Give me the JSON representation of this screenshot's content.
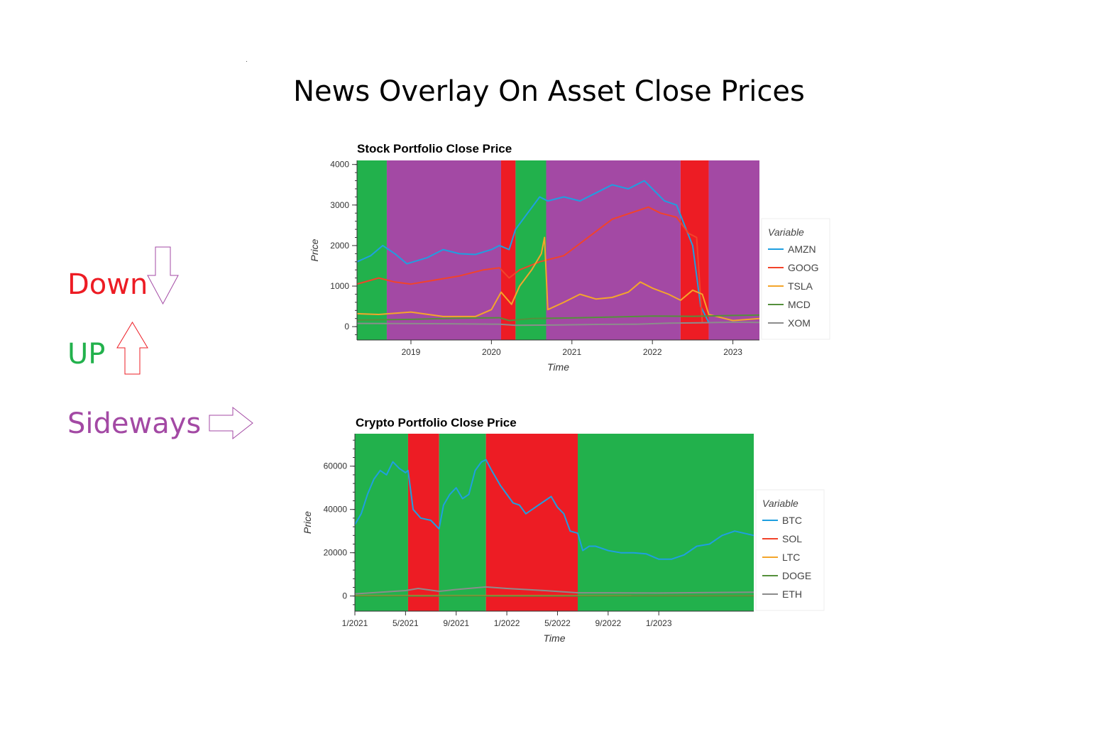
{
  "page": {
    "title": "News Overlay On Asset Close Prices"
  },
  "key": [
    {
      "label": "Down",
      "color": "#ED1C24",
      "arrow": "down"
    },
    {
      "label": "UP",
      "color": "#22B14C",
      "arrow": "up"
    },
    {
      "label": "Sideways",
      "color": "#A349A4",
      "arrow": "right"
    }
  ],
  "chart_data": [
    {
      "type": "line",
      "title": "Stock Portfolio Close Price",
      "xlabel": "Time",
      "ylabel": "Price",
      "xlim": [
        2018.33,
        2023.33
      ],
      "ylim": [
        -330,
        4100
      ],
      "x_ticks": [
        2019,
        2020,
        2021,
        2022,
        2023
      ],
      "x_tick_labels": [
        "2019",
        "2020",
        "2021",
        "2022",
        "2023"
      ],
      "y_ticks": [
        0,
        1000,
        2000,
        3000,
        4000
      ],
      "y_tick_labels": [
        "0",
        "1000",
        "2000",
        "3000",
        "4000"
      ],
      "legend_title": "Variable",
      "legend_position": "right",
      "regions": [
        {
          "start": 2018.33,
          "end": 2018.7,
          "trend": "up"
        },
        {
          "start": 2018.7,
          "end": 2020.12,
          "trend": "sideways"
        },
        {
          "start": 2020.12,
          "end": 2020.3,
          "trend": "down"
        },
        {
          "start": 2020.3,
          "end": 2020.68,
          "trend": "up"
        },
        {
          "start": 2020.68,
          "end": 2022.35,
          "trend": "sideways"
        },
        {
          "start": 2022.35,
          "end": 2022.7,
          "trend": "down"
        },
        {
          "start": 2022.7,
          "end": 2023.33,
          "trend": "sideways"
        }
      ],
      "series": [
        {
          "name": "AMZN",
          "color": "#1F9FE0",
          "x": [
            2018.33,
            2018.5,
            2018.65,
            2018.8,
            2018.95,
            2019.2,
            2019.4,
            2019.6,
            2019.8,
            2020.0,
            2020.1,
            2020.22,
            2020.3,
            2020.45,
            2020.6,
            2020.7,
            2020.9,
            2021.1,
            2021.3,
            2021.5,
            2021.7,
            2021.9,
            2022.0,
            2022.15,
            2022.3,
            2022.4,
            2022.5,
            2022.6,
            2022.7
          ],
          "values": [
            1600,
            1750,
            2000,
            1800,
            1550,
            1700,
            1900,
            1800,
            1780,
            1900,
            2000,
            1900,
            2400,
            2800,
            3200,
            3100,
            3200,
            3100,
            3300,
            3500,
            3400,
            3600,
            3400,
            3100,
            3000,
            2500,
            2000,
            500,
            100
          ]
        },
        {
          "name": "GOOG",
          "color": "#F2432A",
          "x": [
            2018.33,
            2018.6,
            2018.8,
            2019.0,
            2019.3,
            2019.6,
            2019.9,
            2020.1,
            2020.22,
            2020.35,
            2020.6,
            2020.9,
            2021.2,
            2021.5,
            2021.8,
            2021.95,
            2022.1,
            2022.3,
            2022.45,
            2022.55,
            2022.62
          ],
          "values": [
            1050,
            1200,
            1100,
            1050,
            1150,
            1250,
            1400,
            1450,
            1200,
            1400,
            1600,
            1750,
            2200,
            2650,
            2850,
            2950,
            2800,
            2700,
            2300,
            2200,
            100
          ]
        },
        {
          "name": "TSLA",
          "color": "#F4A52B",
          "x": [
            2018.33,
            2018.6,
            2019.0,
            2019.4,
            2019.8,
            2020.0,
            2020.12,
            2020.25,
            2020.35,
            2020.5,
            2020.62,
            2020.66,
            2020.7,
            2020.9,
            2021.1,
            2021.3,
            2021.5,
            2021.7,
            2021.85,
            2022.0,
            2022.2,
            2022.35,
            2022.5,
            2022.62,
            2022.7,
            2023.0,
            2023.33
          ],
          "values": [
            320,
            300,
            360,
            250,
            250,
            420,
            850,
            550,
            1000,
            1400,
            1800,
            2200,
            420,
            600,
            800,
            680,
            720,
            850,
            1100,
            950,
            800,
            650,
            900,
            800,
            300,
            150,
            200
          ]
        },
        {
          "name": "MCD",
          "color": "#55903C",
          "x": [
            2018.33,
            2019.0,
            2019.6,
            2020.1,
            2020.22,
            2020.5,
            2021.0,
            2021.6,
            2022.0,
            2022.5,
            2023.0,
            2023.33
          ],
          "values": [
            160,
            180,
            210,
            220,
            150,
            200,
            215,
            240,
            260,
            255,
            275,
            285
          ]
        },
        {
          "name": "XOM",
          "color": "#8C8C8C",
          "x": [
            2018.33,
            2019.0,
            2019.6,
            2020.1,
            2020.3,
            2020.8,
            2021.3,
            2021.8,
            2022.2,
            2022.6,
            2023.0,
            2023.33
          ],
          "values": [
            80,
            75,
            70,
            60,
            35,
            40,
            55,
            60,
            85,
            95,
            110,
            105
          ]
        }
      ]
    },
    {
      "type": "line",
      "title": "Crypto Portfolio Close Price",
      "xlabel": "Time",
      "ylabel": "Price",
      "xlim": [
        0,
        31.5
      ],
      "ylim": [
        -7000,
        75000
      ],
      "x_ticks": [
        0,
        4,
        8,
        12,
        16,
        20,
        24
      ],
      "x_tick_labels": [
        "1/2021",
        "5/2021",
        "9/2021",
        "1/2022",
        "5/2022",
        "9/2022",
        "1/2023"
      ],
      "y_ticks": [
        0,
        20000,
        40000,
        60000
      ],
      "y_tick_labels": [
        "0",
        "20000",
        "40000",
        "60000"
      ],
      "legend_title": "Variable",
      "legend_position": "right",
      "regions": [
        {
          "start": 0,
          "end": 4.2,
          "trend": "up"
        },
        {
          "start": 4.2,
          "end": 6.65,
          "trend": "down"
        },
        {
          "start": 6.65,
          "end": 10.35,
          "trend": "up"
        },
        {
          "start": 10.35,
          "end": 17.6,
          "trend": "down"
        },
        {
          "start": 17.6,
          "end": 31.5,
          "trend": "up"
        }
      ],
      "series": [
        {
          "name": "BTC",
          "color": "#1F9FE0",
          "x": [
            0,
            0.5,
            1,
            1.5,
            2,
            2.5,
            3,
            3.5,
            4,
            4.2,
            4.6,
            5.2,
            6,
            6.65,
            7,
            7.5,
            8,
            8.5,
            9,
            9.5,
            10,
            10.35,
            10.8,
            11.5,
            12,
            12.5,
            13,
            13.5,
            14,
            14.5,
            15,
            15.5,
            16,
            16.5,
            17,
            17.6,
            18,
            18.5,
            19,
            20,
            21,
            22,
            23,
            24,
            25,
            26,
            27,
            28,
            29,
            30,
            31.5
          ],
          "values": [
            33000,
            38000,
            47000,
            54000,
            58000,
            56000,
            62000,
            59000,
            57000,
            58000,
            40000,
            36000,
            35000,
            31000,
            42000,
            47000,
            50000,
            45000,
            47000,
            58000,
            62000,
            63000,
            58000,
            51000,
            47000,
            43000,
            42000,
            38000,
            40000,
            42000,
            44000,
            46000,
            41000,
            38000,
            30000,
            29000,
            21000,
            23000,
            23000,
            21000,
            20000,
            20000,
            19500,
            17000,
            17000,
            19000,
            23000,
            24000,
            28000,
            30000,
            28000
          ]
        },
        {
          "name": "SOL",
          "color": "#F2432A",
          "x": [
            0,
            31.5
          ],
          "values": [
            80,
            100
          ]
        },
        {
          "name": "LTC",
          "color": "#F4A52B",
          "x": [
            0,
            31.5
          ],
          "values": [
            150,
            90
          ]
        },
        {
          "name": "DOGE",
          "color": "#55903C",
          "x": [
            0,
            31.5
          ],
          "values": [
            10,
            10
          ]
        },
        {
          "name": "ETH",
          "color": "#8C8C8C",
          "x": [
            0,
            4,
            5,
            6.65,
            8,
            10.35,
            12,
            15,
            17.6,
            20,
            24,
            28,
            31.5
          ],
          "values": [
            1000,
            2500,
            3500,
            2200,
            3000,
            4200,
            3500,
            2500,
            1500,
            1500,
            1400,
            1600,
            1800
          ]
        }
      ]
    }
  ]
}
